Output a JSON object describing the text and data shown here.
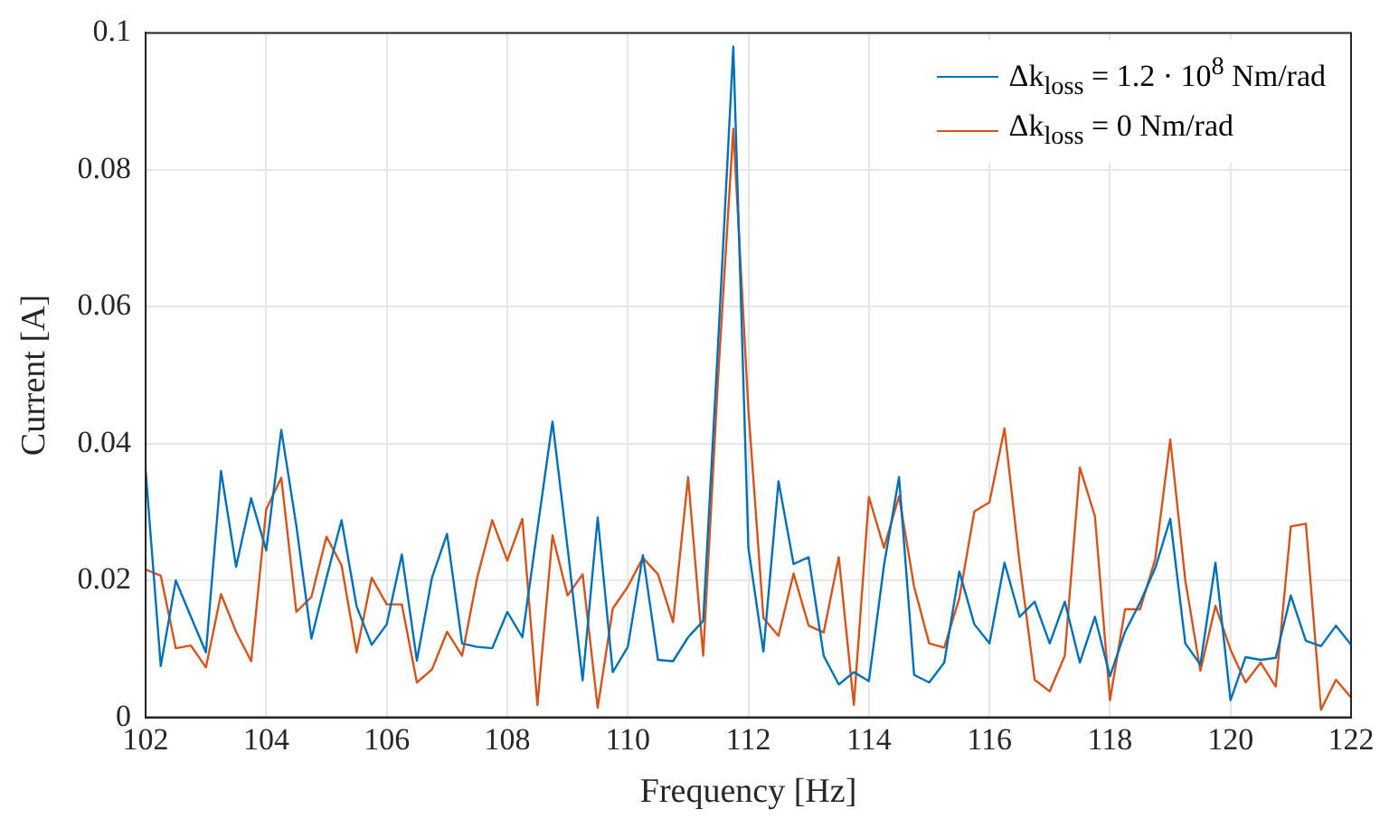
{
  "chart_data": {
    "type": "line",
    "xlabel": "Frequency [Hz]",
    "ylabel": "Current [A]",
    "x": [
      102,
      102.25,
      102.5,
      102.75,
      103,
      103.25,
      103.5,
      103.75,
      104,
      104.25,
      104.5,
      104.75,
      105,
      105.25,
      105.5,
      105.75,
      106,
      106.25,
      106.5,
      106.75,
      107,
      107.25,
      107.5,
      107.75,
      108,
      108.25,
      108.5,
      108.75,
      109,
      109.25,
      109.5,
      109.75,
      110,
      110.25,
      110.5,
      110.75,
      111,
      111.25,
      111.5,
      111.75,
      112,
      112.25,
      112.5,
      112.75,
      113,
      113.25,
      113.5,
      113.75,
      114,
      114.25,
      114.5,
      114.75,
      115,
      115.25,
      115.5,
      115.75,
      116,
      116.25,
      116.5,
      116.75,
      117,
      117.25,
      117.5,
      117.75,
      118,
      118.25,
      118.5,
      118.75,
      119,
      119.25,
      119.5,
      119.75,
      120,
      120.25,
      120.5,
      120.75,
      121,
      121.25,
      121.5,
      121.75,
      122
    ],
    "series": [
      {
        "name": "Δk$_{loss}$ = 1.2 · 10$^{8}$ Nm/rad",
        "color": "#0072bd",
        "values": [
          0.036,
          0.0075,
          0.02,
          0.0147,
          0.0095,
          0.036,
          0.022,
          0.032,
          0.0244,
          0.042,
          0.028,
          0.0115,
          0.0204,
          0.0288,
          0.0162,
          0.0106,
          0.0136,
          0.0238,
          0.0083,
          0.0204,
          0.0268,
          0.0108,
          0.0103,
          0.0101,
          0.0154,
          0.0117,
          0.0275,
          0.0432,
          0.0248,
          0.0054,
          0.0292,
          0.0066,
          0.0103,
          0.0237,
          0.0084,
          0.0082,
          0.0117,
          0.0141,
          0.055,
          0.098,
          0.0248,
          0.0096,
          0.0345,
          0.0224,
          0.0234,
          0.009,
          0.0048,
          0.0066,
          0.0053,
          0.0222,
          0.0351,
          0.0062,
          0.0051,
          0.008,
          0.0213,
          0.0136,
          0.0108,
          0.0226,
          0.0147,
          0.0169,
          0.0108,
          0.0169,
          0.008,
          0.0147,
          0.006,
          0.0125,
          0.0168,
          0.0218,
          0.029,
          0.0108,
          0.0077,
          0.0226,
          0.0025,
          0.0088,
          0.0084,
          0.0087,
          0.0178,
          0.0112,
          0.0104,
          0.0134,
          0.0106
        ]
      },
      {
        "name": "Δk$_{loss}$ = 0 Nm/rad",
        "color": "#d95319",
        "values": [
          0.0216,
          0.0207,
          0.0101,
          0.0105,
          0.0073,
          0.018,
          0.0125,
          0.0082,
          0.0304,
          0.035,
          0.0154,
          0.0176,
          0.0264,
          0.0222,
          0.0095,
          0.0204,
          0.0165,
          0.0165,
          0.0051,
          0.007,
          0.0125,
          0.009,
          0.0204,
          0.0288,
          0.0229,
          0.029,
          0.0018,
          0.0266,
          0.0178,
          0.0209,
          0.0014,
          0.0159,
          0.0191,
          0.0233,
          0.0209,
          0.0139,
          0.0351,
          0.009,
          0.05,
          0.086,
          0.045,
          0.0145,
          0.0119,
          0.021,
          0.0134,
          0.0124,
          0.0234,
          0.0018,
          0.0322,
          0.0248,
          0.0323,
          0.0191,
          0.0108,
          0.0102,
          0.0174,
          0.0301,
          0.0314,
          0.0422,
          0.0226,
          0.0055,
          0.0038,
          0.009,
          0.0365,
          0.0294,
          0.0025,
          0.0158,
          0.0158,
          0.0231,
          0.0406,
          0.02,
          0.0068,
          0.0163,
          0.0099,
          0.0051,
          0.008,
          0.0045,
          0.0279,
          0.0283,
          0.0011,
          0.0055,
          0.0029
        ]
      }
    ],
    "xlim": [
      102,
      122
    ],
    "xticks": [
      102,
      104,
      106,
      108,
      110,
      112,
      114,
      116,
      118,
      120,
      122
    ],
    "ylim": [
      0,
      0.1
    ],
    "yticks": [
      0,
      0.02,
      0.04,
      0.06,
      0.08,
      0.1
    ],
    "grid": true,
    "legend": "top right",
    "marker": "none",
    "line_style": "solid"
  }
}
